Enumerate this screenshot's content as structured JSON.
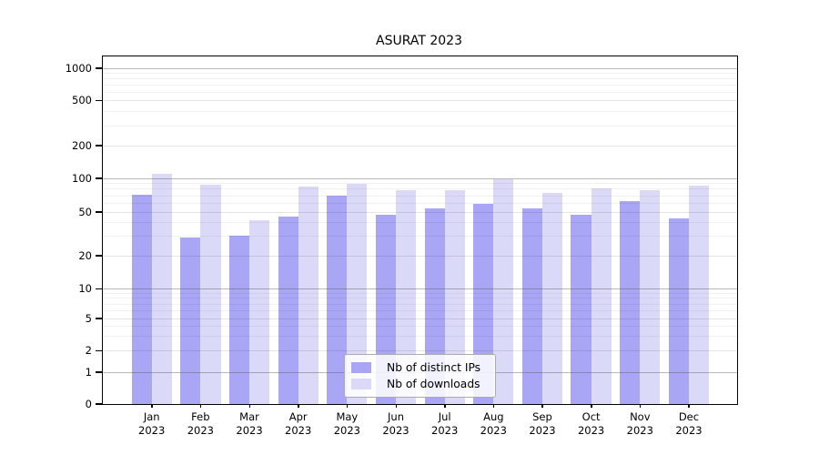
{
  "chart_data": {
    "type": "bar",
    "title": "ASURAT 2023",
    "year_label": "2023",
    "months": [
      "Jan",
      "Feb",
      "Mar",
      "Apr",
      "May",
      "Jun",
      "Jul",
      "Aug",
      "Sep",
      "Oct",
      "Nov",
      "Dec"
    ],
    "series": [
      {
        "name": "Nb of distinct IPs",
        "color": "#a8a6f5",
        "values": [
          71,
          29,
          30,
          45,
          69,
          47,
          53,
          59,
          53,
          47,
          62,
          43
        ]
      },
      {
        "name": "Nb of downloads",
        "color": "#dbd9f8",
        "values": [
          110,
          87,
          42,
          84,
          88,
          78,
          77,
          97,
          74,
          81,
          77,
          85
        ]
      }
    ],
    "y_axis": {
      "scale": "log-like (symlog/asinh)",
      "ticks": [
        0,
        1,
        2,
        5,
        10,
        20,
        50,
        100,
        200,
        500,
        1000
      ],
      "top_value": 1250
    },
    "x_axis": {
      "tick_format": "Month over Year, two lines"
    },
    "legend": {
      "position": "lower-center",
      "entries": [
        "Nb of distinct IPs",
        "Nb of downloads"
      ]
    },
    "grid": "on (minor + major horizontal lines)"
  }
}
